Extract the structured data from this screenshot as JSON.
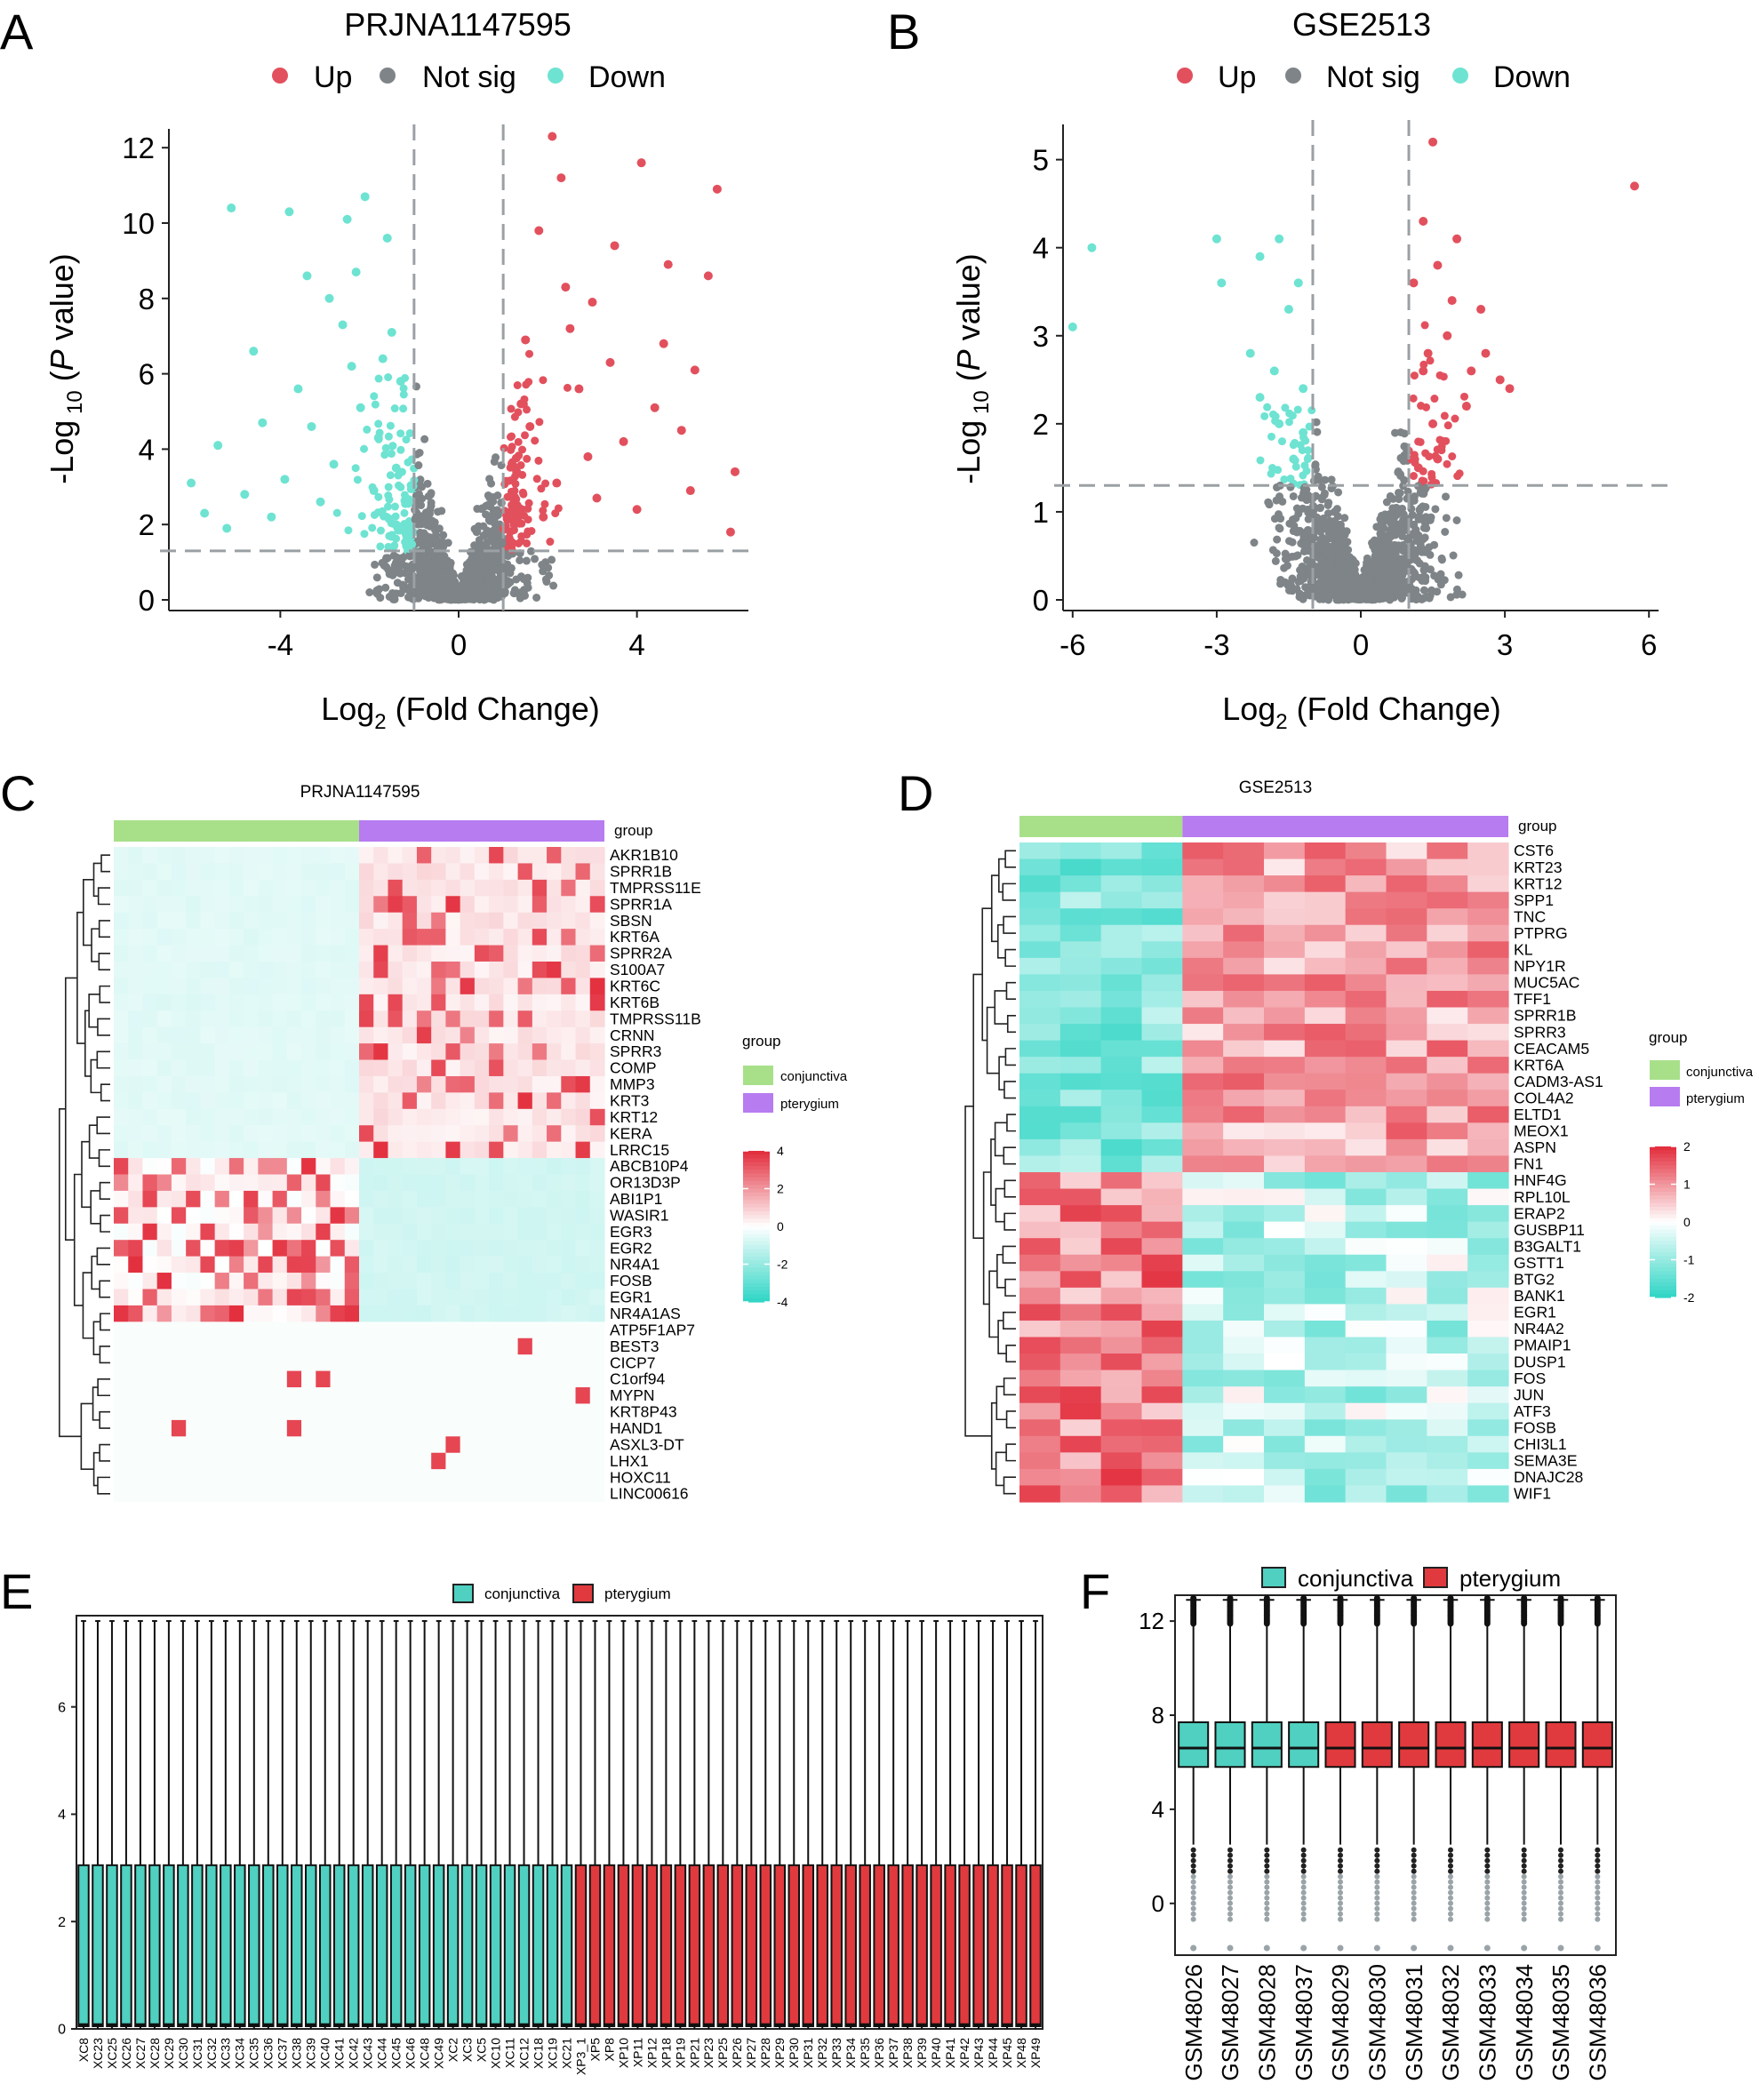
{
  "colors": {
    "up": "#e2505d",
    "notsig": "#7e8487",
    "down": "#6ee3d2",
    "conj_box": "#4fd0c0",
    "pter_box": "#e03a3e",
    "hm_low": "#33d6c6",
    "hm_mid": "#ffffff",
    "hm_high": "#e3303f",
    "grp_conj": "#a8e08a",
    "grp_pter": "#b77cf0"
  },
  "panels": {
    "a": "A",
    "b": "B",
    "c": "C",
    "d": "D",
    "e": "E",
    "f": "F"
  },
  "legend_volcano": {
    "up": "Up",
    "notsig": "Not sig",
    "down": "Down"
  },
  "chart_data": [
    {
      "id": "A",
      "type": "scatter",
      "title": "PRJNA1147595",
      "xlabel": "Log2 (Fold Change)",
      "ylabel": "-Log10 (P value)",
      "xlim": [
        -6.5,
        6.5
      ],
      "ylim": [
        0,
        12.5
      ],
      "xticks": [
        -4,
        0,
        4
      ],
      "yticks": [
        0,
        2,
        4,
        6,
        8,
        10,
        12
      ],
      "fc_cutoff": [
        -1,
        1
      ],
      "p_cutoff": 1.3,
      "series": [
        {
          "name": "Up",
          "points": [
            [
              2.1,
              12.3
            ],
            [
              5.8,
              10.9
            ],
            [
              4.1,
              11.6
            ],
            [
              2.3,
              11.2
            ],
            [
              4.7,
              8.9
            ],
            [
              5.6,
              8.6
            ],
            [
              3.0,
              7.9
            ],
            [
              5.3,
              6.1
            ],
            [
              2.5,
              7.2
            ],
            [
              3.4,
              6.3
            ],
            [
              4.4,
              5.1
            ],
            [
              6.2,
              3.4
            ],
            [
              1.8,
              9.8
            ],
            [
              2.7,
              5.6
            ],
            [
              3.7,
              4.2
            ],
            [
              5.0,
              4.5
            ],
            [
              1.5,
              6.9
            ],
            [
              2.9,
              3.8
            ],
            [
              1.6,
              4.6
            ],
            [
              2.2,
              3.1
            ],
            [
              4.0,
              2.4
            ],
            [
              5.2,
              2.9
            ],
            [
              6.1,
              1.8
            ],
            [
              1.9,
              2.2
            ],
            [
              3.1,
              2.7
            ],
            [
              1.3,
              3.4
            ],
            [
              2.4,
              8.3
            ],
            [
              3.5,
              9.4
            ],
            [
              1.4,
              5.2
            ],
            [
              4.6,
              6.8
            ]
          ]
        },
        {
          "name": "Down",
          "points": [
            [
              -5.1,
              10.4
            ],
            [
              -3.8,
              10.3
            ],
            [
              -2.5,
              10.1
            ],
            [
              -2.1,
              10.7
            ],
            [
              -3.4,
              8.6
            ],
            [
              -4.6,
              6.6
            ],
            [
              -2.9,
              8.0
            ],
            [
              -1.6,
              9.6
            ],
            [
              -6.0,
              3.1
            ],
            [
              -5.4,
              4.1
            ],
            [
              -3.3,
              4.6
            ],
            [
              -2.4,
              6.2
            ],
            [
              -1.5,
              7.1
            ],
            [
              -4.8,
              2.8
            ],
            [
              -5.7,
              2.3
            ],
            [
              -3.9,
              3.2
            ],
            [
              -2.8,
              3.6
            ],
            [
              -1.8,
              4.3
            ],
            [
              -2.2,
              5.1
            ],
            [
              -1.3,
              5.8
            ],
            [
              -4.2,
              2.2
            ],
            [
              -3.1,
              2.6
            ],
            [
              -1.9,
              2.9
            ],
            [
              -1.4,
              3.5
            ],
            [
              -2.6,
              7.3
            ],
            [
              -3.6,
              5.6
            ],
            [
              -4.4,
              4.7
            ],
            [
              -1.7,
              6.4
            ],
            [
              -2.3,
              8.7
            ],
            [
              -5.2,
              1.9
            ]
          ]
        }
      ]
    },
    {
      "id": "B",
      "type": "scatter",
      "title": "GSE2513",
      "xlabel": "Log2 (Fold Change)",
      "ylabel": "-Log10 (P value)",
      "xlim": [
        -6.2,
        6.2
      ],
      "ylim": [
        0,
        5.4
      ],
      "xticks": [
        -6,
        -3,
        0,
        3,
        6
      ],
      "yticks": [
        0,
        1,
        2,
        3,
        4,
        5
      ],
      "fc_cutoff": [
        -1,
        1
      ],
      "p_cutoff": 1.3,
      "series": [
        {
          "name": "Up",
          "points": [
            [
              5.7,
              4.7
            ],
            [
              1.5,
              5.2
            ],
            [
              1.3,
              4.3
            ],
            [
              2.0,
              4.1
            ],
            [
              1.6,
              3.8
            ],
            [
              2.5,
              3.3
            ],
            [
              1.8,
              3.0
            ],
            [
              2.9,
              2.5
            ],
            [
              3.1,
              2.4
            ],
            [
              1.4,
              2.8
            ],
            [
              2.2,
              2.2
            ],
            [
              1.7,
              1.8
            ],
            [
              1.2,
              1.5
            ],
            [
              2.6,
              2.8
            ],
            [
              1.9,
              3.4
            ],
            [
              1.3,
              2.6
            ],
            [
              2.3,
              2.6
            ],
            [
              1.5,
              2.0
            ],
            [
              1.1,
              3.6
            ],
            [
              1.6,
              1.6
            ]
          ]
        },
        {
          "name": "Down",
          "points": [
            [
              -5.6,
              4.0
            ],
            [
              -3.0,
              4.1
            ],
            [
              -6.0,
              3.1
            ],
            [
              -2.9,
              3.6
            ],
            [
              -2.1,
              3.9
            ],
            [
              -1.7,
              4.1
            ],
            [
              -1.5,
              3.3
            ],
            [
              -2.3,
              2.8
            ],
            [
              -1.2,
              2.4
            ],
            [
              -1.7,
              2.0
            ],
            [
              -1.4,
              1.6
            ],
            [
              -1.2,
              1.9
            ],
            [
              -2.1,
              2.3
            ],
            [
              -1.3,
              3.6
            ],
            [
              -1.8,
              2.6
            ]
          ]
        }
      ]
    },
    {
      "id": "C",
      "type": "heatmap",
      "title": "PRJNA1147595",
      "genes": [
        "AKR1B10",
        "SPRR1B",
        "TMPRSS11E",
        "SPRR1A",
        "SBSN",
        "KRT6A",
        "SPRR2A",
        "S100A7",
        "KRT6C",
        "KRT6B",
        "TMPRSS11B",
        "CRNN",
        "SPRR3",
        "COMP",
        "MMP3",
        "KRT3",
        "KRT12",
        "KERA",
        "LRRC15",
        "ABCB10P4",
        "OR13D3P",
        "ABI1P1",
        "WASIR1",
        "EGR3",
        "EGR2",
        "NR4A1",
        "FOSB",
        "EGR1",
        "NR4A1AS",
        "ATP5F1AP7",
        "BEST3",
        "CICP7",
        "C1orf94",
        "MYPN",
        "KRT8P43",
        "HAND1",
        "ASXL3-DT",
        "LHX1",
        "HOXC11",
        "LINC00616"
      ],
      "groups": [
        {
          "name": "conjunctiva",
          "n": 17
        },
        {
          "name": "pterygium",
          "n": 17
        }
      ],
      "legend_title": "group",
      "annotation_label": "group",
      "scale": [
        4,
        2,
        0,
        -2,
        -4
      ]
    },
    {
      "id": "D",
      "type": "heatmap",
      "title": "GSE2513",
      "genes": [
        "CST6",
        "KRT23",
        "KRT12",
        "SPP1",
        "TNC",
        "PTPRG",
        "KL",
        "NPY1R",
        "MUC5AC",
        "TFF1",
        "SPRR1B",
        "SPRR3",
        "CEACAM5",
        "KRT6A",
        "CADM3-AS1",
        "COL4A2",
        "ELTD1",
        "MEOX1",
        "ASPN",
        "FN1",
        "HNF4G",
        "RPL10L",
        "ERAP2",
        "GUSBP11",
        "B3GALT1",
        "GSTT1",
        "BTG2",
        "BANK1",
        "EGR1",
        "NR4A2",
        "PMAIP1",
        "DUSP1",
        "FOS",
        "JUN",
        "ATF3",
        "FOSB",
        "CHI3L1",
        "SEMA3E",
        "DNAJC28",
        "WIF1"
      ],
      "groups": [
        {
          "name": "conjunctiva",
          "n": 4
        },
        {
          "name": "pterygium",
          "n": 8
        }
      ],
      "legend_title": "group",
      "annotation_label": "group",
      "scale": [
        2,
        1,
        0,
        -1,
        -2
      ]
    },
    {
      "id": "E",
      "type": "box",
      "legend": [
        "conjunctiva",
        "pterygium"
      ],
      "ylim": [
        0,
        7.7
      ],
      "yticks": [
        0,
        2,
        4,
        6
      ],
      "stats": {
        "whisker_low": 0,
        "q1": 0.05,
        "median": 0.08,
        "q3": 3.05,
        "whisker_high": 7.6
      },
      "categories": [
        "XC8",
        "XC23",
        "XC25",
        "XC26",
        "XC27",
        "XC28",
        "XC29",
        "XC30",
        "XC31",
        "XC32",
        "XC33",
        "XC34",
        "XC35",
        "XC36",
        "XC37",
        "XC38",
        "XC39",
        "XC40",
        "XC41",
        "XC42",
        "XC43",
        "XC44",
        "XC45",
        "XC46",
        "XC48",
        "XC49",
        "XC2",
        "XC3",
        "XC5",
        "XC10",
        "XC11",
        "XC12",
        "XC18",
        "XC19",
        "XC21",
        "XP3_1",
        "XP5",
        "XP8",
        "XP10",
        "XP11",
        "XP12",
        "XP18",
        "XP19",
        "XP21",
        "XP23",
        "XP25",
        "XP26",
        "XP27",
        "XP28",
        "XP29",
        "XP30",
        "XP31",
        "XP32",
        "XP33",
        "XP34",
        "XP35",
        "XP36",
        "XP37",
        "XP38",
        "XP39",
        "XP40",
        "XP41",
        "XP42",
        "XP43",
        "XP44",
        "XP45",
        "XP48",
        "XP49"
      ],
      "group_split": 35
    },
    {
      "id": "F",
      "type": "box",
      "legend": [
        "conjunctiva",
        "pterygium"
      ],
      "ylim": [
        -2.2,
        13.1
      ],
      "yticks": [
        0,
        4,
        8,
        12
      ],
      "stats": {
        "whisker_low": 2.5,
        "q1": 5.8,
        "median": 6.6,
        "q3": 7.7,
        "whisker_high": 12.9
      },
      "categories": [
        "GSM48026",
        "GSM48027",
        "GSM48028",
        "GSM48037",
        "GSM48029",
        "GSM48030",
        "GSM48031",
        "GSM48032",
        "GSM48033",
        "GSM48034",
        "GSM48035",
        "GSM48036"
      ],
      "group_split": 4
    }
  ]
}
